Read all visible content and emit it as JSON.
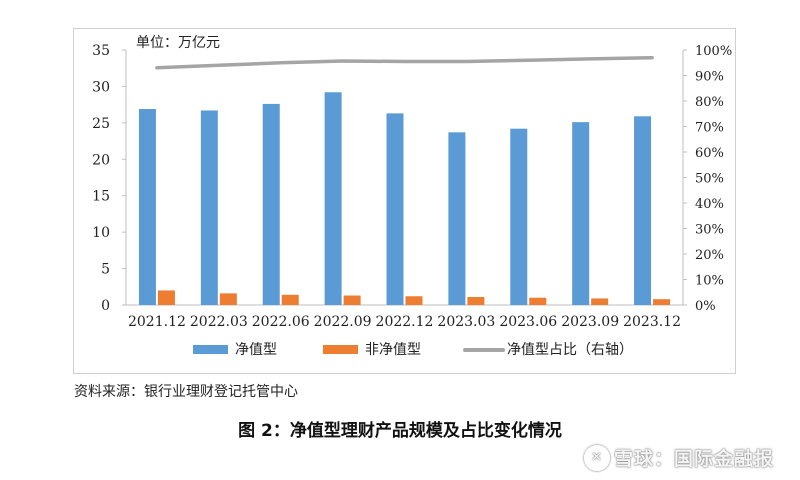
{
  "chart_data": {
    "type": "bar",
    "unit_label": "单位：万亿元",
    "categories": [
      "2021.12",
      "2022.03",
      "2022.06",
      "2022.09",
      "2022.12",
      "2023.03",
      "2023.06",
      "2023.09",
      "2023.12"
    ],
    "series": [
      {
        "name": "净值型",
        "type": "bar",
        "axis": "left",
        "color": "#5b9bd5",
        "values": [
          26.9,
          26.7,
          27.6,
          29.2,
          26.3,
          23.7,
          24.2,
          25.1,
          25.9
        ]
      },
      {
        "name": "非净值型",
        "type": "bar",
        "axis": "left",
        "color": "#ed7d31",
        "values": [
          2.0,
          1.6,
          1.4,
          1.3,
          1.2,
          1.1,
          1.0,
          0.9,
          0.8
        ]
      },
      {
        "name": "净值型占比（右轴）",
        "type": "line",
        "axis": "right",
        "color": "#a5a5a5",
        "values": [
          93.0,
          94.0,
          95.0,
          95.7,
          95.5,
          95.5,
          96.0,
          96.5,
          97.0
        ]
      }
    ],
    "y_left": {
      "min": 0,
      "max": 35,
      "step": 5,
      "tick_labels": [
        "0",
        "5",
        "10",
        "15",
        "20",
        "25",
        "30",
        "35"
      ]
    },
    "y_right": {
      "min": 0,
      "max": 100,
      "step": 10,
      "tick_labels": [
        "0%",
        "10%",
        "20%",
        "30%",
        "40%",
        "50%",
        "60%",
        "70%",
        "80%",
        "90%",
        "100%"
      ]
    },
    "grid": false,
    "legend_position": "bottom"
  },
  "source_note": "资料来源：银行业理财登记托管中心",
  "caption": "图 2：净值型理财产品规模及占比变化情况",
  "watermark": {
    "glyph": "✕",
    "text": "雪球：国际金融报"
  }
}
